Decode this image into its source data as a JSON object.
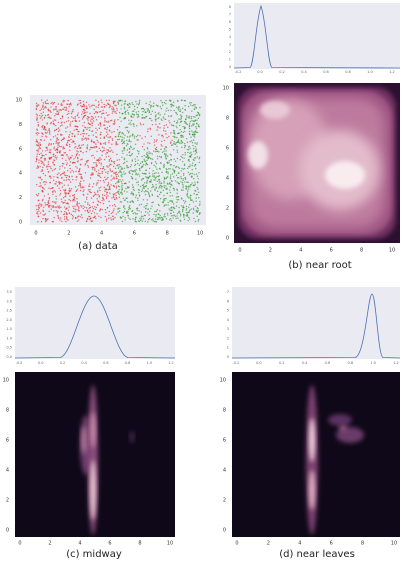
{
  "panels": [
    {
      "caption": "(a) data",
      "xticks": [
        "0",
        "2",
        "4",
        "6",
        "8",
        "10"
      ],
      "yticks": [
        "0",
        "2",
        "4",
        "6",
        "8",
        "10"
      ]
    },
    {
      "caption": "(b) near root",
      "marginal": {
        "xticks": [
          "-0.2",
          "0.0",
          "0.2",
          "0.4",
          "0.6",
          "0.8",
          "1.0",
          "1.2"
        ],
        "yticks": [
          "0",
          "1",
          "2",
          "3",
          "4",
          "5",
          "6",
          "7",
          "8"
        ]
      },
      "xticks": [
        "0",
        "2",
        "4",
        "6",
        "8",
        "10"
      ],
      "yticks": [
        "0",
        "2",
        "4",
        "6",
        "8",
        "10"
      ]
    },
    {
      "caption": "(c) midway",
      "marginal": {
        "xticks": [
          "-0.2",
          "0.0",
          "0.2",
          "0.4",
          "0.6",
          "0.8",
          "1.0",
          "1.2"
        ],
        "yticks": [
          "0.0",
          "0.5",
          "1.0",
          "1.5",
          "2.0",
          "2.5",
          "3.0",
          "3.5"
        ]
      },
      "xticks": [
        "0",
        "2",
        "4",
        "6",
        "8",
        "10"
      ],
      "yticks": [
        "0",
        "2",
        "4",
        "6",
        "8",
        "10"
      ]
    },
    {
      "caption": "(d) near leaves",
      "marginal": {
        "xticks": [
          "-0.2",
          "0.0",
          "0.2",
          "0.4",
          "0.6",
          "0.8",
          "1.0",
          "1.2"
        ],
        "yticks": [
          "0",
          "1",
          "2",
          "3",
          "4",
          "5",
          "6",
          "7"
        ]
      },
      "xticks": [
        "0",
        "2",
        "4",
        "6",
        "8",
        "10"
      ],
      "yticks": [
        "0",
        "2",
        "4",
        "6",
        "8",
        "10"
      ]
    }
  ]
}
